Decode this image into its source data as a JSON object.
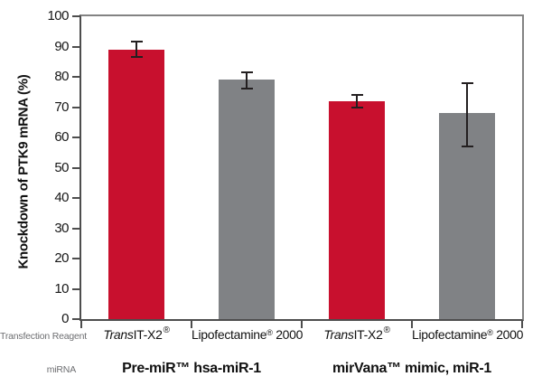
{
  "chart_data": {
    "type": "bar",
    "title": "",
    "xlabel": "",
    "ylabel": "Knockdown of PTK9 mRNA (%)",
    "ylim": [
      0,
      100
    ],
    "ytick_step": 10,
    "grid": false,
    "legend": "none",
    "palette": {
      "red": "#C8102E",
      "gray": "#808285"
    },
    "categories": [
      {
        "reagent": "TransIT-X2®",
        "mirna": "Pre-miR™ hsa-miR-1",
        "value": 89,
        "error_up": 2.5,
        "error_down": 2.5,
        "color": "red",
        "label_segments": [
          {
            "t": "Trans",
            "s": "i"
          },
          {
            "t": "IT-X2"
          },
          {
            "t": "®",
            "s": "sup"
          }
        ]
      },
      {
        "reagent": "Lipofectamine® 2000",
        "mirna": "Pre-miR™ hsa-miR-1",
        "value": 79,
        "error_up": 2.5,
        "error_down": 3,
        "color": "gray",
        "label_segments": [
          {
            "t": "Lipofectamine"
          },
          {
            "t": "®",
            "s": "sups"
          },
          {
            "t": " 2000"
          }
        ]
      },
      {
        "reagent": "TransIT-X2®",
        "mirna": "mirVana™ mimic, miR-1",
        "value": 72,
        "error_up": 2,
        "error_down": 2,
        "color": "red",
        "label_segments": [
          {
            "t": "Trans",
            "s": "i"
          },
          {
            "t": "IT-X2"
          },
          {
            "t": "®",
            "s": "sup"
          }
        ]
      },
      {
        "reagent": "Lipofectamine® 2000",
        "mirna": "mirVana™ mimic, miR-1",
        "value": 68,
        "error_up": 10,
        "error_down": 11,
        "color": "gray",
        "label_segments": [
          {
            "t": "Lipofectamine"
          },
          {
            "t": "®",
            "s": "sups"
          },
          {
            "t": " 2000"
          }
        ]
      }
    ],
    "groups": [
      {
        "label": "Pre-miR™ hsa-miR-1"
      },
      {
        "label": "mirVana™ mimic, miR-1"
      }
    ],
    "row_labels": {
      "reagent": "Transfection Reagent",
      "mirna": "miRNA"
    }
  }
}
